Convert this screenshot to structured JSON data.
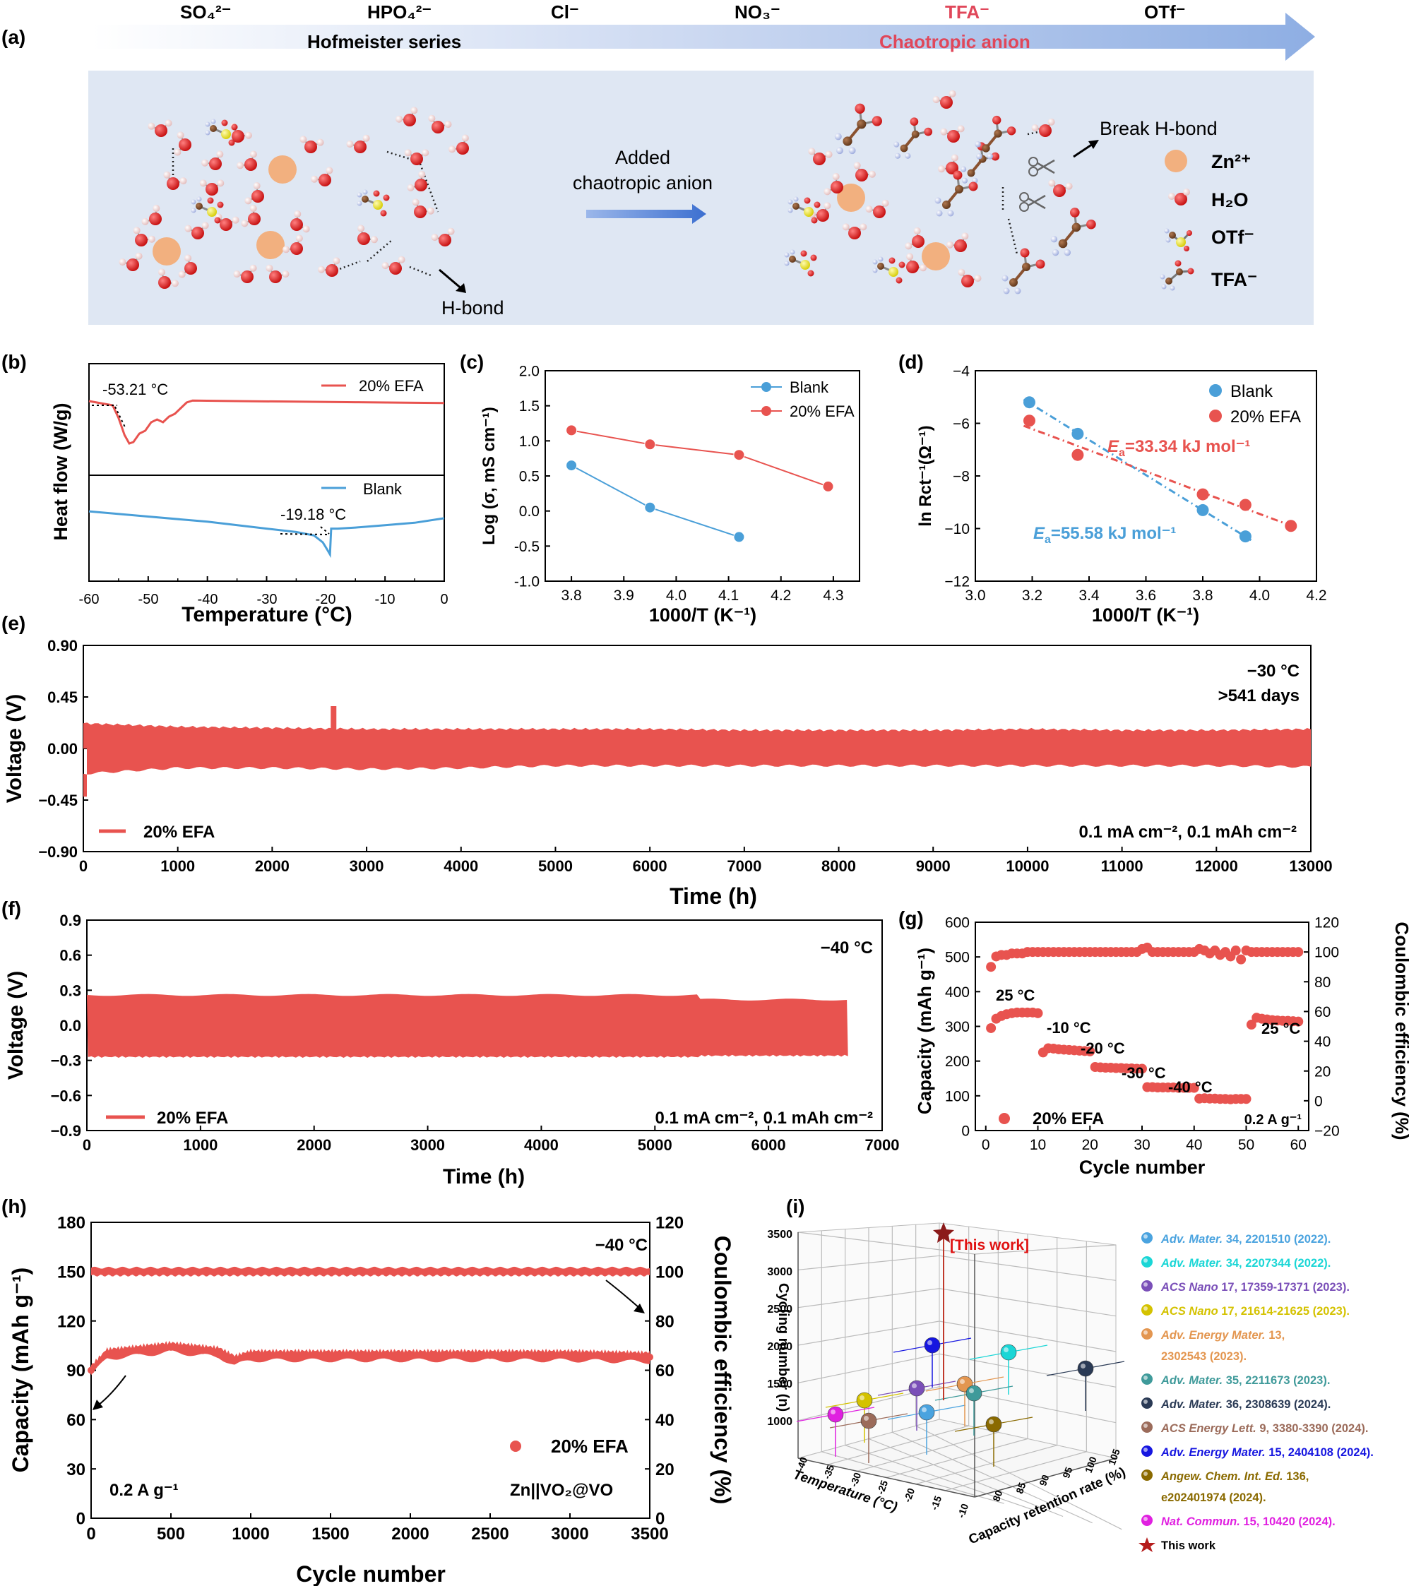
{
  "panels": {
    "a": {
      "letter": "(a)",
      "anions": [
        "SO₄²⁻",
        "HPO₄²⁻",
        "Cl⁻",
        "NO₃⁻",
        "TFA⁻",
        "OTf⁻"
      ],
      "series_label": "Hofmeister series",
      "chaotropic_label": "Chaotropic anion",
      "added_label_1": "Added",
      "added_label_2": "chaotropic anion",
      "hbond_label": "H-bond",
      "break_label": "Break H-bond",
      "legend": [
        "Zn²⁺",
        "H₂O",
        "OTf⁻",
        "TFA⁻"
      ],
      "colors": {
        "zn": "#f2b07f",
        "oxygen": "#e01818",
        "hydrogen": "#f0c8c8",
        "sulfur": "#f2ea1a",
        "carbon": "#8a5230",
        "fluorine": "#b8c4e8",
        "panel_bg": "#dfe7f3",
        "arrow": "#8eaee3",
        "tfa_text": "#e0475a"
      }
    },
    "b": {
      "letter": "(b)",
      "ylabel": "Heat flow (W/g)",
      "xlabel": "Temperature (°C)",
      "legend": [
        "20% EFA",
        "Blank"
      ],
      "ann1": "-53.21 °C",
      "ann2": "-19.18 °C",
      "ticks": [
        "-60",
        "-50",
        "-40",
        "-30",
        "-20",
        "-10",
        "0"
      ]
    },
    "c": {
      "letter": "(c)",
      "ylabel": "Log (σ, mS cm⁻¹)",
      "xlabel": "1000/T (K⁻¹)",
      "legend": [
        "Blank",
        "20% EFA"
      ]
    },
    "d": {
      "letter": "(d)",
      "ylabel": "ln Rct⁻¹(Ω⁻¹)",
      "xlabel": "1000/T (K⁻¹)",
      "legend": [
        "Blank",
        "20% EFA"
      ],
      "ea_red": "=33.34 kJ mol⁻¹",
      "ea_blue": "=55.58 kJ mol⁻¹",
      "ea_symbol": "E",
      "ea_sub": "a"
    },
    "e": {
      "letter": "(e)",
      "ylabel": "Voltage (V)",
      "xlabel": "Time (h)",
      "legend": "20% EFA",
      "note1": "−30 °C",
      "note2": ">541 days",
      "cond": "0.1 mA cm⁻², 0.1 mAh cm⁻²"
    },
    "f": {
      "letter": "(f)",
      "ylabel": "Voltage (V)",
      "xlabel": "Time (h)",
      "legend": "20% EFA",
      "note1": "−40 °C",
      "cond": "0.1 mA cm⁻², 0.1 mAh cm⁻²"
    },
    "g": {
      "letter": "(g)",
      "ylabel": "Capacity (mAh g⁻¹)",
      "y2label": "Coulombic efficiency (%)",
      "xlabel": "Cycle number",
      "legend": "20% EFA",
      "rate": "0.2 A g⁻¹",
      "temps": [
        "25 °C",
        "-10 °C",
        "-20 °C",
        "-30 °C",
        "-40 °C",
        "25 °C"
      ]
    },
    "h": {
      "letter": "(h)",
      "ylabel": "Capacity (mAh g⁻¹)",
      "y2label": "Coulombic efficiency (%)",
      "xlabel": "Cycle number",
      "note1": "−40 °C",
      "legend": "20% EFA",
      "rate": "0.2 A g⁻¹",
      "cell": "Zn||VO₂@VO"
    },
    "i": {
      "letter": "(i)",
      "zlabel": "Cycling number (n)",
      "xlabel": "Temperature (°C)",
      "ylabel": "Capacity retention rate (%)",
      "this_work": "[This work]",
      "refs": [
        {
          "journal": "Adv. Mater.",
          "rest": " 34, 2201510 (2022).",
          "color": "#4aa3df"
        },
        {
          "journal": "Adv. Mater.",
          "rest": " 34, 2207344 (2022).",
          "color": "#1ad6d6"
        },
        {
          "journal": "ACS Nano",
          "rest": " 17, 17359-17371 (2023).",
          "color": "#7a4fb8"
        },
        {
          "journal": "ACS Nano",
          "rest": " 17, 21614-21625 (2023).",
          "color": "#d4c200"
        },
        {
          "journal": "Adv. Energy Mater.",
          "rest": " 13,",
          "rest2": "2302543 (2023).",
          "color": "#e39650"
        },
        {
          "journal": "Adv. Mater.",
          "rest": " 35, 2211673 (2023).",
          "color": "#3f9a9a"
        },
        {
          "journal": "Adv. Mater.",
          "rest": " 36, 2308639 (2024).",
          "color": "#2a3a55"
        },
        {
          "journal": "ACS Energy Lett.",
          "rest": " 9, 3380-3390 (2024).",
          "color": "#9b6b5a"
        },
        {
          "journal": "Adv. Energy Mater.",
          "rest": " 15, 2404108 (2024).",
          "color": "#1616e0"
        },
        {
          "journal": "Angew. Chem. Int. Ed.",
          "rest": " 136,",
          "rest2": "e202401974 (2024).",
          "color": "#8a6a00"
        },
        {
          "journal": "Nat. Commun.",
          "rest": " 15, 10420 (2024).",
          "color": "#e020e0"
        },
        {
          "journal": "",
          "rest": "This work",
          "color": "#b51c1c"
        }
      ]
    }
  },
  "chart_data": [
    {
      "type": "line",
      "panel": "b",
      "title": "",
      "xlabel": "Temperature (°C)",
      "ylabel": "Heat flow (W/g)",
      "xlim": [
        -60,
        0
      ],
      "series": [
        {
          "name": "20% EFA",
          "color": "#e8534f",
          "x": [
            -60,
            -56,
            -55,
            -54,
            -53.2,
            -52.5,
            -51.5,
            -50.5,
            -49.5,
            -48.5,
            -47.5,
            -46.5,
            -45.5,
            -44.5,
            -43.5,
            -42.5,
            -35,
            -25,
            -15,
            -5,
            0
          ],
          "y": [
            3.0,
            2.85,
            2.4,
            1.8,
            1.5,
            1.55,
            1.85,
            1.95,
            2.25,
            2.35,
            2.25,
            2.45,
            2.55,
            2.75,
            2.95,
            3.02,
            3.0,
            2.98,
            2.96,
            2.94,
            2.93
          ]
        },
        {
          "name": "Blank",
          "color": "#4a9fd8",
          "x": [
            -60,
            -50,
            -40,
            -30,
            -25,
            -22,
            -20.5,
            -19.8,
            -19.3,
            -19.1,
            -18.6,
            -18,
            -15,
            -10,
            -5,
            0
          ],
          "y": [
            -1.05,
            -1.2,
            -1.35,
            -1.55,
            -1.65,
            -1.75,
            -1.95,
            -2.15,
            -2.3,
            -1.55,
            -1.55,
            -1.55,
            -1.52,
            -1.45,
            -1.38,
            -1.25
          ]
        }
      ],
      "annotations": [
        "-53.21 °C",
        "-19.18 °C"
      ]
    },
    {
      "type": "line",
      "panel": "c",
      "xlabel": "1000/T (K⁻¹)",
      "ylabel": "Log (σ, mS cm⁻¹)",
      "xlim": [
        3.75,
        4.35
      ],
      "ylim": [
        -1.0,
        2.0
      ],
      "series": [
        {
          "name": "Blank",
          "color": "#4a9fd8",
          "x": [
            3.8,
            3.95,
            4.12
          ],
          "y": [
            0.65,
            0.05,
            -0.37
          ]
        },
        {
          "name": "20% EFA",
          "color": "#e8534f",
          "x": [
            3.8,
            3.95,
            4.12,
            4.29
          ],
          "y": [
            1.15,
            0.95,
            0.8,
            0.35
          ]
        }
      ]
    },
    {
      "type": "scatter",
      "panel": "d",
      "xlabel": "1000/T (K⁻¹)",
      "ylabel": "ln Rct⁻¹(Ω⁻¹)",
      "xlim": [
        3.0,
        4.2
      ],
      "ylim": [
        -12,
        -4
      ],
      "series": [
        {
          "name": "Blank",
          "color": "#4a9fd8",
          "x": [
            3.19,
            3.36,
            3.8,
            3.95
          ],
          "y": [
            -5.2,
            -6.4,
            -9.3,
            -10.3
          ],
          "Ea": "55.58 kJ mol⁻¹"
        },
        {
          "name": "20% EFA",
          "color": "#e8534f",
          "x": [
            3.19,
            3.36,
            3.8,
            3.95,
            4.11
          ],
          "y": [
            -5.9,
            -7.2,
            -8.7,
            -9.1,
            -9.9
          ],
          "Ea": "33.34 kJ mol⁻¹"
        }
      ]
    },
    {
      "type": "area",
      "panel": "e",
      "xlabel": "Time (h)",
      "ylabel": "Voltage (V)",
      "xlim": [
        0,
        13000
      ],
      "ylim": [
        -0.9,
        0.9
      ],
      "series": [
        {
          "name": "20% EFA",
          "color": "#e8534f",
          "upper": [
            0.22,
            0.19,
            0.18,
            0.17,
            0.17,
            0.17,
            0.17,
            0.16,
            0.16,
            0.16,
            0.17,
            0.16,
            0.16,
            0.17
          ],
          "lower": [
            -0.22,
            -0.17,
            -0.17,
            -0.18,
            -0.17,
            -0.15,
            -0.15,
            -0.15,
            -0.15,
            -0.15,
            -0.15,
            -0.15,
            -0.15,
            -0.16
          ],
          "x": [
            0,
            1000,
            2000,
            3000,
            4000,
            5000,
            6000,
            7000,
            8000,
            9000,
            10000,
            11000,
            12000,
            13000
          ]
        }
      ],
      "spikes": [
        {
          "x": 2650,
          "value": 0.37
        },
        {
          "x": 0,
          "value": -0.42
        }
      ]
    },
    {
      "type": "area",
      "panel": "f",
      "xlabel": "Time (h)",
      "ylabel": "Voltage (V)",
      "xlim": [
        0,
        7000
      ],
      "ylim": [
        -0.9,
        0.9
      ],
      "series": [
        {
          "name": "20% EFA",
          "color": "#e8534f",
          "x": [
            0,
            5400,
            5450,
            6700
          ],
          "upper": [
            0.26,
            0.26,
            0.21,
            0.22
          ],
          "lower": [
            -0.27,
            -0.27,
            -0.26,
            -0.26
          ]
        }
      ]
    },
    {
      "type": "scatter",
      "panel": "g",
      "xlabel": "Cycle number",
      "ylabel": "Capacity (mAh g⁻¹)",
      "y2label": "Coulombic efficiency (%)",
      "xlim": [
        -2,
        62
      ],
      "ylim": [
        0,
        600
      ],
      "y2lim": [
        -20,
        120
      ],
      "series": [
        {
          "name": "Capacity",
          "color": "#e8534f",
          "x": [
            1,
            2,
            3,
            4,
            5,
            6,
            7,
            8,
            9,
            10,
            11,
            12,
            13,
            14,
            15,
            16,
            17,
            18,
            19,
            20,
            21,
            22,
            23,
            24,
            25,
            26,
            27,
            28,
            29,
            30,
            31,
            32,
            33,
            34,
            35,
            36,
            37,
            38,
            39,
            40,
            41,
            42,
            43,
            44,
            45,
            46,
            47,
            48,
            49,
            50,
            51,
            52,
            53,
            54,
            55,
            56,
            57,
            58,
            59,
            60
          ],
          "y": [
            295,
            322,
            330,
            335,
            338,
            340,
            340,
            340,
            340,
            338,
            225,
            237,
            236,
            234,
            233,
            232,
            231,
            230,
            229,
            228,
            183,
            182,
            181,
            181,
            180,
            180,
            179,
            179,
            178,
            178,
            125,
            125,
            124,
            124,
            124,
            124,
            123,
            123,
            123,
            123,
            92,
            93,
            92,
            92,
            91,
            91,
            90,
            91,
            91,
            91,
            305,
            325,
            322,
            320,
            318,
            317,
            316,
            316,
            315,
            314
          ]
        },
        {
          "name": "Coulombic efficiency",
          "color": "#e8534f",
          "axis": "y2",
          "x": [
            1,
            2,
            3,
            4,
            5,
            6,
            7,
            8,
            9,
            10,
            11,
            12,
            13,
            14,
            15,
            16,
            17,
            18,
            19,
            20,
            21,
            22,
            23,
            24,
            25,
            26,
            27,
            28,
            29,
            30,
            31,
            32,
            33,
            34,
            35,
            36,
            37,
            38,
            39,
            40,
            41,
            42,
            43,
            44,
            45,
            46,
            47,
            48,
            49,
            50,
            51,
            52,
            53,
            54,
            55,
            56,
            57,
            58,
            59,
            60
          ],
          "y": [
            90,
            97,
            98,
            98,
            99,
            99,
            99,
            100,
            100,
            100,
            100,
            100,
            100,
            100,
            100,
            100,
            100,
            100,
            100,
            100,
            100,
            100,
            100,
            100,
            100,
            100,
            100,
            100,
            100,
            102,
            103,
            100,
            100,
            100,
            100,
            100,
            100,
            100,
            100,
            100,
            102,
            101,
            99,
            101,
            98,
            100,
            97,
            101,
            95,
            101,
            100,
            100,
            100,
            100,
            100,
            100,
            100,
            100,
            100,
            100
          ]
        }
      ],
      "labels": [
        "25 °C",
        "-10 °C",
        "-20 °C",
        "-30 °C",
        "-40 °C",
        "25 °C"
      ]
    },
    {
      "type": "scatter",
      "panel": "h",
      "xlabel": "Cycle number",
      "ylabel": "Capacity (mAh g⁻¹)",
      "y2label": "Coulombic efficiency (%)",
      "xlim": [
        0,
        3500
      ],
      "ylim": [
        0,
        180
      ],
      "y2lim": [
        0,
        120
      ],
      "series": [
        {
          "name": "Capacity",
          "color": "#e8534f",
          "x": [
            0,
            100,
            200,
            300,
            400,
            500,
            600,
            700,
            800,
            900,
            1000,
            1500,
            2000,
            2500,
            3000,
            3500
          ],
          "y": [
            90,
            100,
            101,
            102,
            103,
            104,
            103,
            102,
            101,
            96,
            99,
            99,
            99,
            99,
            99,
            98
          ]
        },
        {
          "name": "Coulombic efficiency",
          "color": "#e8534f",
          "axis": "y2",
          "x": [
            0,
            500,
            1000,
            1500,
            2000,
            2500,
            3000,
            3500
          ],
          "y": [
            100,
            100,
            100,
            100,
            100,
            100,
            100,
            100
          ]
        }
      ]
    },
    {
      "type": "scatter",
      "panel": "i",
      "xlabel": "Temperature (°C)",
      "ylabel": "Capacity retention rate (%)",
      "zlabel": "Cycling number (n)",
      "zticks": [
        "1000",
        "1500",
        "2000",
        "2500",
        "3000",
        "3500"
      ],
      "xticks": [
        "-40",
        "-35",
        "-30",
        "-25",
        "-20",
        "-15",
        "-10"
      ],
      "yticks": [
        "80",
        "85",
        "90",
        "95",
        "100",
        "105"
      ],
      "series": [
        {
          "name": "This work",
          "x": -40,
          "y": 100,
          "z": 3500
        }
      ]
    }
  ]
}
